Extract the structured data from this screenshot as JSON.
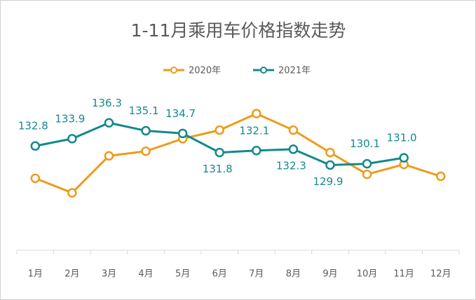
{
  "chart_data": {
    "type": "line",
    "title": "1-11月乘用车价格指数走势",
    "categories": [
      "1月",
      "2月",
      "3月",
      "4月",
      "5月",
      "6月",
      "7月",
      "8月",
      "9月",
      "10月",
      "11月",
      "12月"
    ],
    "series": [
      {
        "name": "2020年",
        "color": "#ed9b1c",
        "values": [
          127.9,
          125.7,
          131.3,
          132.0,
          133.9,
          135.2,
          137.7,
          135.2,
          131.8,
          128.5,
          130.0,
          128.2
        ]
      },
      {
        "name": "2021年",
        "color": "#14898c",
        "values": [
          132.8,
          133.9,
          136.3,
          135.1,
          134.7,
          131.8,
          132.1,
          132.3,
          129.9,
          130.1,
          131.0,
          null
        ],
        "value_labels": [
          "132.8",
          "133.9",
          "136.3",
          "135.1",
          "134.7",
          "131.8",
          "132.1",
          "132.3",
          "129.9",
          "130.1",
          "131.0",
          null
        ]
      }
    ],
    "ylim": [
      117,
      141
    ],
    "legend": "top"
  }
}
